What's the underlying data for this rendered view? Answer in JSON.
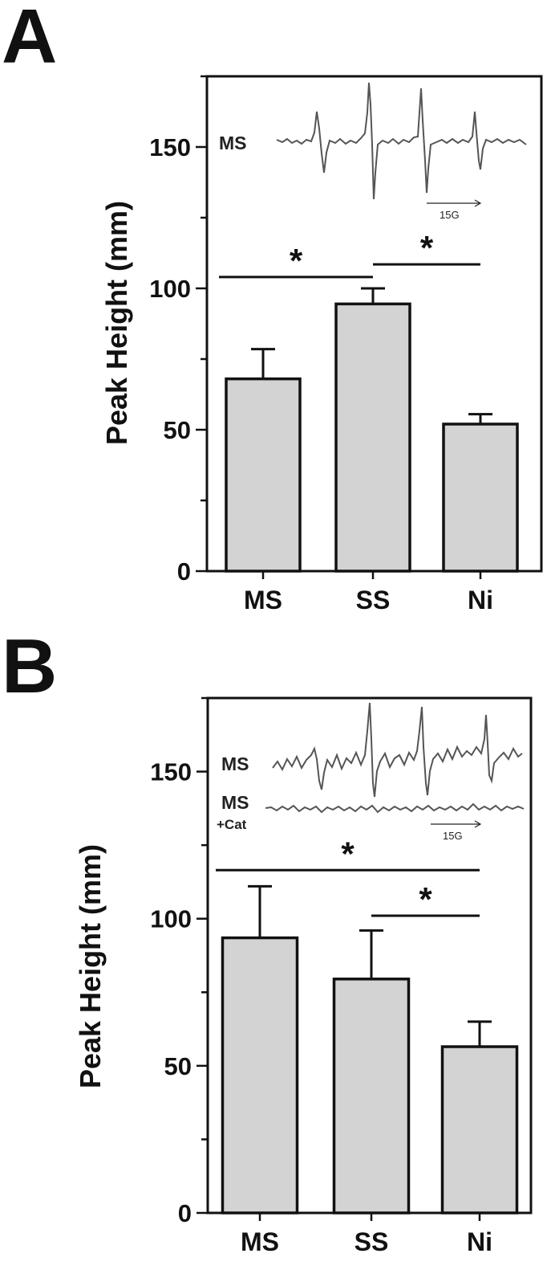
{
  "chart_data": [
    {
      "panel_label": "A",
      "type": "bar",
      "categories": [
        "MS",
        "SS",
        "Ni"
      ],
      "values": [
        68,
        94.5,
        52
      ],
      "errors": [
        10.5,
        5.5,
        3.5
      ],
      "ylabel": "Peak Height (mm)",
      "ylim": [
        0,
        175
      ],
      "yticks": [
        0,
        50,
        100,
        150
      ],
      "yticks_labels": [
        "0",
        "50",
        "100",
        "150"
      ],
      "bar_color": "#d3d3d3",
      "significance": [
        {
          "from": 0,
          "to": 1,
          "y": 104,
          "label": "*"
        },
        {
          "from": 1,
          "to": 2,
          "y": 108.5,
          "label": "*"
        }
      ],
      "inset": {
        "traces": [
          {
            "label": "MS",
            "sublabel": ""
          }
        ],
        "scale_label": "15G"
      }
    },
    {
      "panel_label": "B",
      "type": "bar",
      "categories": [
        "MS",
        "SS",
        "Ni"
      ],
      "values": [
        93.5,
        79.5,
        56.5
      ],
      "errors": [
        17.5,
        16.5,
        8.5
      ],
      "ylabel": "Peak Height (mm)",
      "ylim": [
        0,
        175
      ],
      "yticks": [
        0,
        50,
        100,
        150
      ],
      "yticks_labels": [
        "0",
        "50",
        "100",
        "150"
      ],
      "bar_color": "#d3d3d3",
      "significance": [
        {
          "from": 0,
          "to": 2,
          "y": 116.5,
          "label": "*"
        },
        {
          "from": 1,
          "to": 2,
          "y": 101,
          "label": "*"
        }
      ],
      "inset": {
        "traces": [
          {
            "label": "MS",
            "sublabel": ""
          },
          {
            "label": "MS",
            "sublabel": "+Cat"
          }
        ],
        "scale_label": "15G"
      }
    }
  ]
}
